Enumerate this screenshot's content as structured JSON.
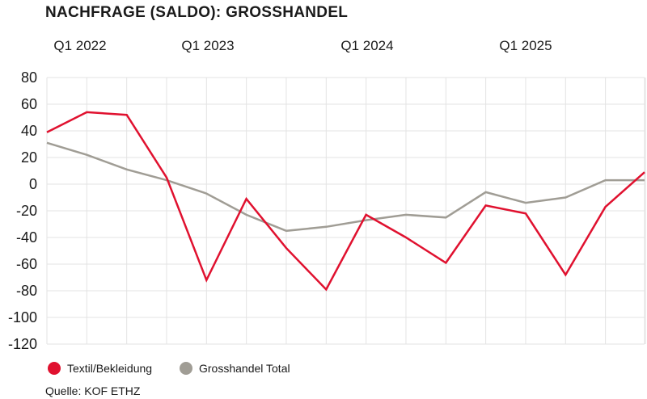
{
  "chart_data": {
    "type": "line",
    "title": "NACHFRAGE (SALDO): GROSSHANDEL",
    "x_tick_labels": [
      "Q1 2022",
      "Q1 2023",
      "Q1 2024",
      "Q1 2025"
    ],
    "y_ticks": [
      "80",
      "60",
      "40",
      "20",
      "0",
      "-20",
      "-40",
      "-60",
      "-80",
      "-100",
      "-120"
    ],
    "ylim": [
      -120,
      80
    ],
    "grid": true,
    "legend_position": "bottom-left",
    "x": [
      "Q1 2022",
      "Q2 2022",
      "Q3 2022",
      "Q4 2022",
      "Q1 2023",
      "Q2 2023",
      "Q3 2023",
      "Q4 2023",
      "Q1 2024",
      "Q2 2024",
      "Q3 2024",
      "Q4 2024",
      "Q1 2025",
      "Q2 2025",
      "Q3 2025",
      "Q4 2025"
    ],
    "series": [
      {
        "name": "Textil/Bekleidung",
        "color": "#e0112f",
        "values": [
          39,
          54,
          52,
          5,
          -72,
          -11,
          -48,
          -79,
          -23,
          -40,
          -59,
          -16,
          -22,
          -68,
          -17,
          9
        ]
      },
      {
        "name": "Grosshandel Total",
        "color": "#a09d95",
        "values": [
          31,
          22,
          11,
          3,
          -7,
          -23,
          -35,
          -32,
          -27,
          -23,
          -25,
          -6,
          -14,
          -10,
          3,
          3
        ]
      }
    ]
  },
  "source": "Quelle: KOF ETHZ"
}
